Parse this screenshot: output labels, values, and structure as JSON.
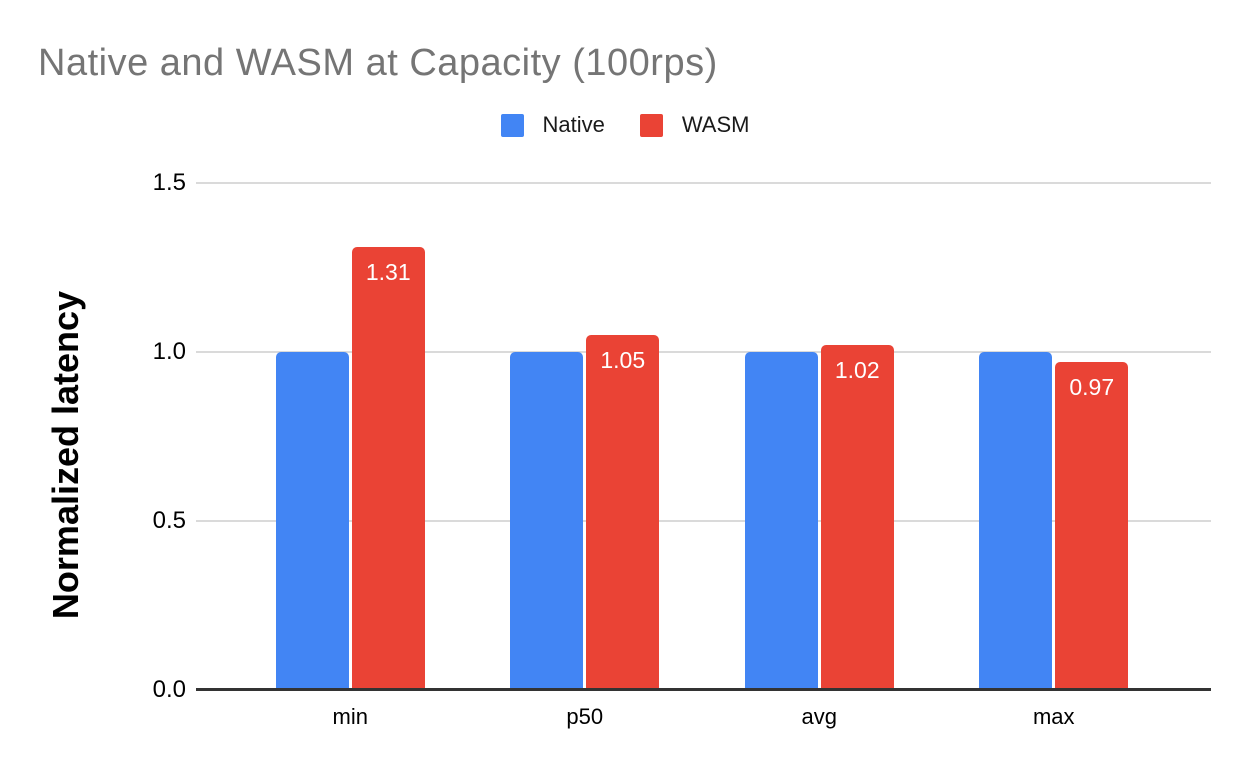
{
  "page": {
    "background": "#ffffff"
  },
  "chart_data": {
    "type": "bar",
    "title": "Native and WASM at Capacity (100rps)",
    "title_color": "#757575",
    "ylabel": "Normalized latency",
    "xlabel": "",
    "ylim": [
      0,
      1.5
    ],
    "yticks": [
      "0.0",
      "0.5",
      "1.0",
      "1.5"
    ],
    "grid": true,
    "gridline_color": "#dadada",
    "axis_line_color": "#333333",
    "legend_position": "top",
    "categories": [
      "min",
      "p50",
      "avg",
      "max"
    ],
    "series": [
      {
        "name": "Native",
        "color": "#4285F4",
        "values": [
          1.0,
          1.0,
          1.0,
          1.0
        ],
        "labels": [
          "",
          "",
          "",
          ""
        ],
        "label_color": "#ffffff"
      },
      {
        "name": "WASM",
        "color": "#EA4335",
        "values": [
          1.31,
          1.05,
          1.02,
          0.97
        ],
        "labels": [
          "1.31",
          "1.05",
          "1.02",
          "0.97"
        ],
        "label_color": "#ffffff"
      }
    ]
  }
}
